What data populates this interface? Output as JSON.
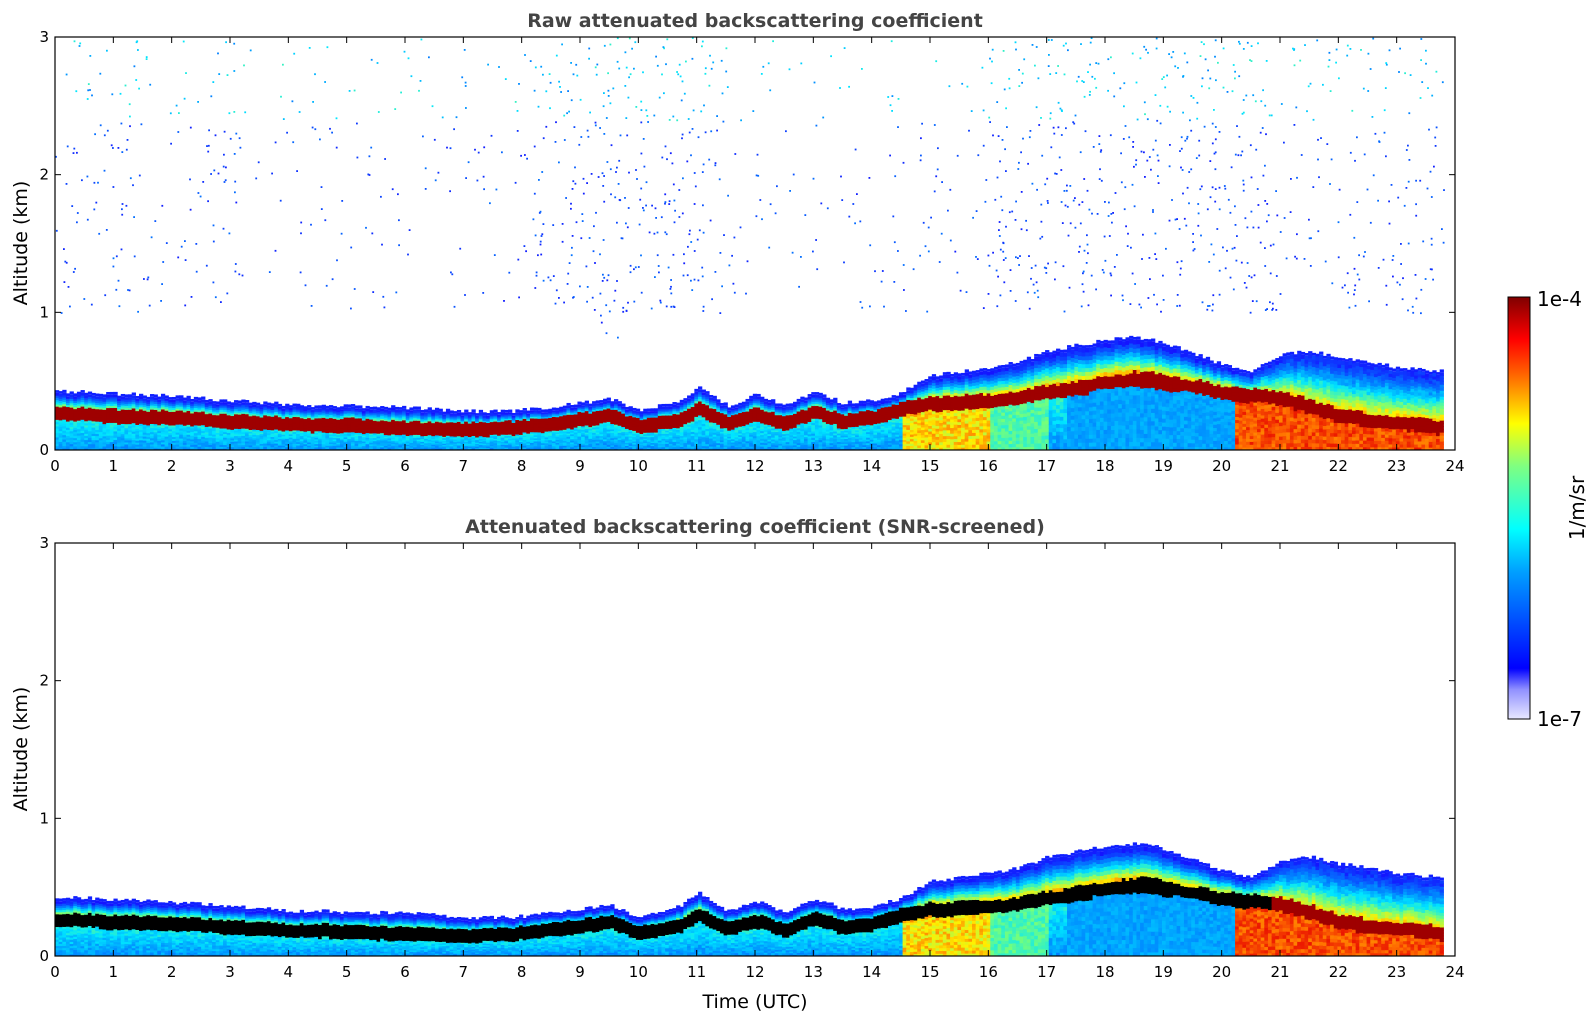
{
  "chart_data": [
    {
      "type": "heatmap",
      "title": "Raw attenuated backscattering coefficient",
      "xlabel": "",
      "ylabel": "Altitude (km)",
      "xlim": [
        0,
        24
      ],
      "ylim": [
        0,
        3
      ],
      "xticks": [
        "0",
        "1",
        "2",
        "3",
        "4",
        "5",
        "6",
        "7",
        "8",
        "9",
        "10",
        "11",
        "12",
        "13",
        "14",
        "15",
        "16",
        "17",
        "18",
        "19",
        "20",
        "21",
        "22",
        "23",
        "24"
      ],
      "yticks": [
        "0",
        "1",
        "2",
        "3"
      ],
      "time_h": [
        0,
        1,
        2,
        3,
        4,
        5,
        6,
        7,
        7.8,
        8,
        9,
        9.5,
        10,
        10.7,
        11,
        11.5,
        12,
        12.5,
        13,
        13.5,
        14,
        14.5,
        15,
        15.5,
        16,
        16.5,
        17,
        17.5,
        18,
        18.5,
        19,
        19.5,
        20,
        20.5,
        21,
        21.5,
        22,
        22.5,
        23,
        23.5,
        23.8
      ],
      "layer_top_km": [
        0.41,
        0.39,
        0.37,
        0.34,
        0.31,
        0.3,
        0.29,
        0.26,
        0.26,
        0.27,
        0.32,
        0.35,
        0.26,
        0.34,
        0.44,
        0.3,
        0.38,
        0.3,
        0.4,
        0.32,
        0.34,
        0.4,
        0.52,
        0.55,
        0.58,
        0.62,
        0.7,
        0.74,
        0.78,
        0.8,
        0.76,
        0.68,
        0.6,
        0.55,
        0.68,
        0.7,
        0.65,
        0.62,
        0.58,
        0.56,
        0.55
      ],
      "peak_layer_km": [
        0.27,
        0.25,
        0.24,
        0.21,
        0.19,
        0.18,
        0.16,
        0.15,
        0.16,
        0.17,
        0.22,
        0.25,
        0.17,
        0.22,
        0.3,
        0.2,
        0.26,
        0.19,
        0.28,
        0.21,
        0.24,
        0.3,
        0.34,
        0.35,
        0.36,
        0.38,
        0.42,
        0.45,
        0.5,
        0.52,
        0.5,
        0.46,
        0.42,
        0.4,
        0.38,
        0.32,
        0.25,
        0.22,
        0.2,
        0.18,
        0.16
      ],
      "noise_above_km": [
        1.0,
        3.0
      ],
      "colorscale": "jet",
      "color_range": [
        "1e-7",
        "1e-4"
      ],
      "colorbar_label": "1/m/sr"
    },
    {
      "type": "heatmap",
      "title": "Attenuated backscattering coefficient (SNR-screened)",
      "xlabel": "Time (UTC)",
      "ylabel": "Altitude (km)",
      "xlim": [
        0,
        24
      ],
      "ylim": [
        0,
        3
      ],
      "xticks": [
        "0",
        "1",
        "2",
        "3",
        "4",
        "5",
        "6",
        "7",
        "8",
        "9",
        "10",
        "11",
        "12",
        "13",
        "14",
        "15",
        "16",
        "17",
        "18",
        "19",
        "20",
        "21",
        "22",
        "23",
        "24"
      ],
      "yticks": [
        "0",
        "1",
        "2",
        "3"
      ],
      "time_h": [
        0,
        1,
        2,
        3,
        4,
        5,
        6,
        7,
        7.8,
        8,
        9,
        9.5,
        10,
        10.7,
        11,
        11.5,
        12,
        12.5,
        13,
        13.5,
        14,
        14.5,
        15,
        15.5,
        16,
        16.5,
        17,
        17.5,
        18,
        18.5,
        19,
        19.5,
        20,
        20.5,
        21,
        21.5,
        22,
        22.5,
        23,
        23.5,
        23.8
      ],
      "layer_top_km": [
        0.41,
        0.39,
        0.37,
        0.34,
        0.31,
        0.3,
        0.29,
        0.26,
        0.26,
        0.27,
        0.32,
        0.35,
        0.26,
        0.34,
        0.44,
        0.3,
        0.38,
        0.3,
        0.4,
        0.32,
        0.34,
        0.4,
        0.52,
        0.55,
        0.58,
        0.62,
        0.7,
        0.74,
        0.78,
        0.8,
        0.76,
        0.68,
        0.6,
        0.55,
        0.68,
        0.7,
        0.65,
        0.62,
        0.58,
        0.56,
        0.55
      ],
      "peak_layer_km": [
        0.27,
        0.25,
        0.24,
        0.21,
        0.19,
        0.18,
        0.16,
        0.15,
        0.16,
        0.17,
        0.22,
        0.25,
        0.17,
        0.22,
        0.3,
        0.2,
        0.26,
        0.19,
        0.28,
        0.21,
        0.24,
        0.3,
        0.34,
        0.35,
        0.36,
        0.38,
        0.42,
        0.45,
        0.5,
        0.52,
        0.5,
        0.46,
        0.42,
        0.4,
        0.38,
        0.32,
        0.25,
        0.22,
        0.2,
        0.18,
        0.16
      ],
      "colorscale": "jet",
      "color_range": [
        "1e-7",
        "1e-4"
      ],
      "colorbar_label": "1/m/sr"
    }
  ],
  "colorbar": {
    "max_label": "1e-4",
    "min_label": "1e-7",
    "unit_label": "1/m/sr"
  },
  "colors": {
    "title": "#444444",
    "peak": "#800000",
    "screened_peak": "#000000"
  }
}
